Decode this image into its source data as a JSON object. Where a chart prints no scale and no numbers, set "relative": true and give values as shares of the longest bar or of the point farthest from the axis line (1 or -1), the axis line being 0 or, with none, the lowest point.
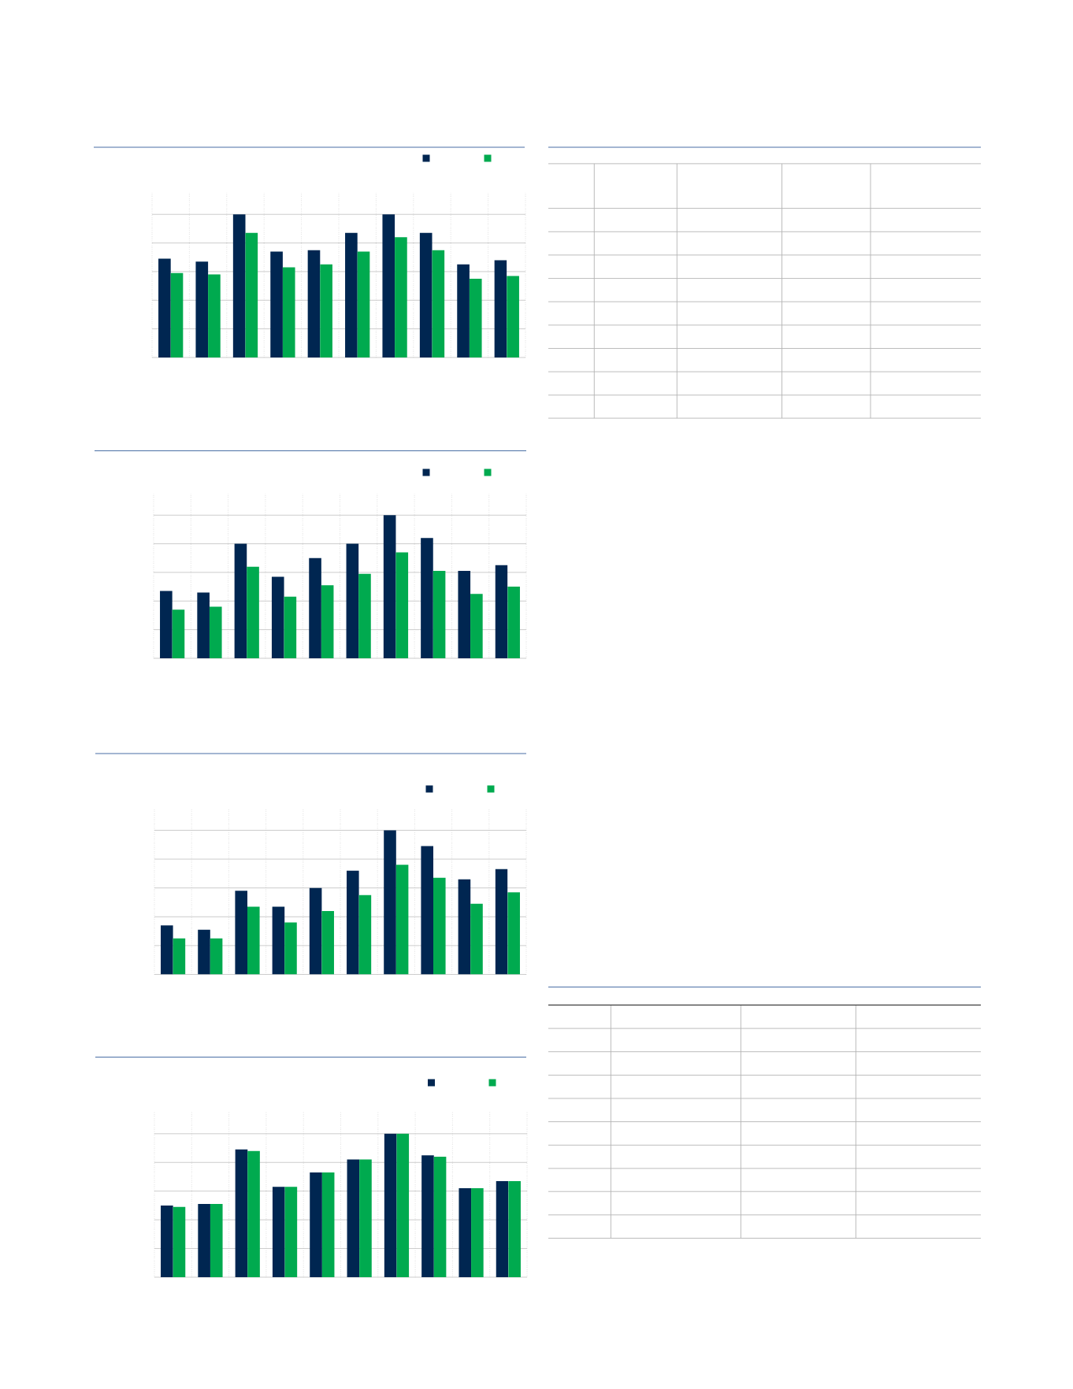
{
  "chart_data": [
    {
      "type": "bar",
      "relative": true,
      "grid": true,
      "categories": [
        null,
        null,
        null,
        null,
        null,
        null,
        null,
        null,
        null,
        null
      ],
      "series": [
        {
          "color": "#002651",
          "values": [
            0.69,
            0.67,
            1.0,
            0.74,
            0.75,
            0.87,
            1.0,
            0.87,
            0.65,
            0.68
          ]
        },
        {
          "color": "#00aa4f",
          "values": [
            0.59,
            0.58,
            0.87,
            0.63,
            0.65,
            0.74,
            0.84,
            0.75,
            0.55,
            0.57
          ]
        }
      ]
    },
    {
      "type": "bar",
      "relative": true,
      "grid": true,
      "categories": [
        null,
        null,
        null,
        null,
        null,
        null,
        null,
        null,
        null,
        null
      ],
      "series": [
        {
          "color": "#002651",
          "values": [
            0.47,
            0.46,
            0.8,
            0.57,
            0.7,
            0.8,
            1.0,
            0.84,
            0.61,
            0.65
          ]
        },
        {
          "color": "#00aa4f",
          "values": [
            0.34,
            0.36,
            0.64,
            0.43,
            0.51,
            0.59,
            0.74,
            0.61,
            0.45,
            0.5
          ]
        }
      ]
    },
    {
      "type": "bar",
      "relative": true,
      "grid": true,
      "categories": [
        null,
        null,
        null,
        null,
        null,
        null,
        null,
        null,
        null,
        null
      ],
      "series": [
        {
          "color": "#002651",
          "values": [
            0.34,
            0.31,
            0.58,
            0.47,
            0.6,
            0.72,
            1.0,
            0.89,
            0.66,
            0.73
          ]
        },
        {
          "color": "#00aa4f",
          "values": [
            0.25,
            0.25,
            0.47,
            0.36,
            0.44,
            0.55,
            0.76,
            0.67,
            0.49,
            0.57
          ]
        }
      ]
    },
    {
      "type": "bar",
      "relative": true,
      "grid": true,
      "categories": [
        null,
        null,
        null,
        null,
        null,
        null,
        null,
        null,
        null,
        null
      ],
      "series": [
        {
          "color": "#002651",
          "values": [
            0.5,
            0.51,
            0.89,
            0.63,
            0.73,
            0.82,
            1.0,
            0.85,
            0.62,
            0.67
          ]
        },
        {
          "color": "#00aa4f",
          "values": [
            0.49,
            0.51,
            0.88,
            0.63,
            0.73,
            0.82,
            1.0,
            0.84,
            0.62,
            0.67
          ]
        }
      ]
    }
  ]
}
